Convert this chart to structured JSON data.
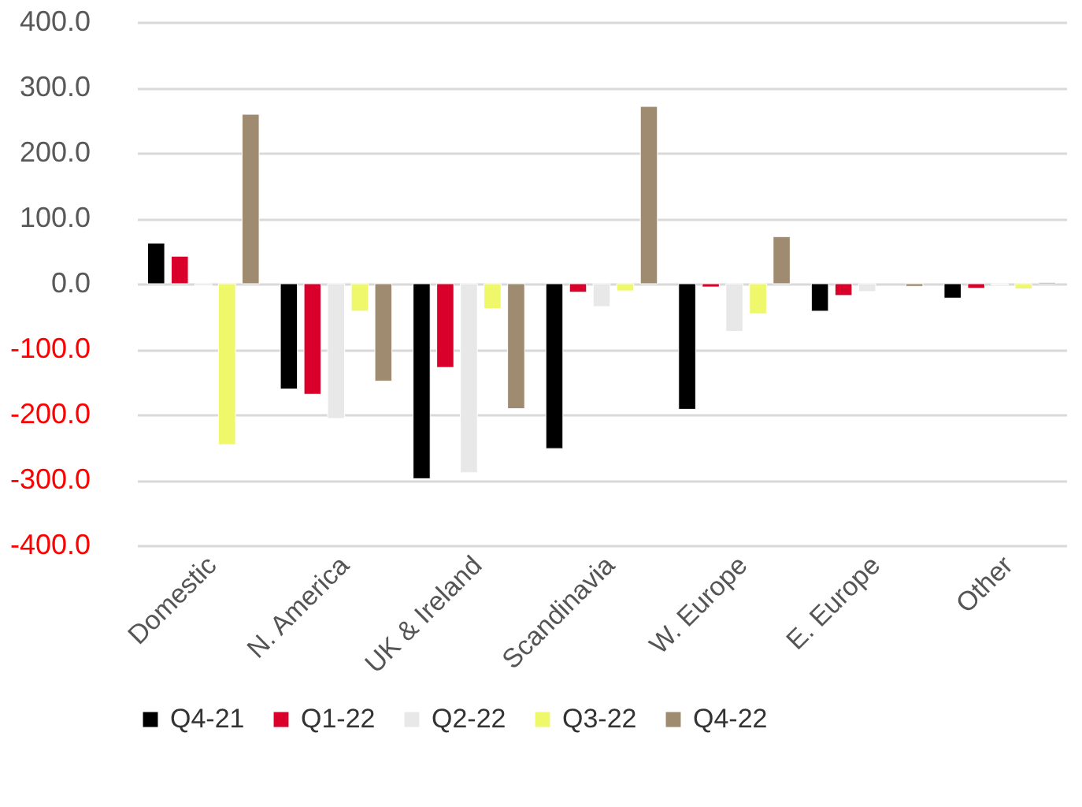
{
  "chart_data": {
    "type": "bar",
    "categories": [
      "Domestic",
      "N. America",
      "UK & Ireland",
      "Scandinavia",
      "W. Europe",
      "E. Europe",
      "Other"
    ],
    "series": [
      {
        "name": "Q4-21",
        "color": "#000000",
        "values": [
          62,
          -161,
          -298,
          -252,
          -192,
          -42,
          -22
        ]
      },
      {
        "name": "Q1-22",
        "color": "#d9002b",
        "values": [
          42,
          -169,
          -128,
          -13,
          -5,
          -18,
          -7
        ]
      },
      {
        "name": "Q2-22",
        "color": "#e8e8e8",
        "values": [
          -3,
          -206,
          -289,
          -35,
          -73,
          -12,
          -2
        ]
      },
      {
        "name": "Q3-22",
        "color": "#eef86a",
        "values": [
          -246,
          -42,
          -38,
          -11,
          -46,
          null,
          -8
        ]
      },
      {
        "name": "Q4-22",
        "color": "#9f8b6f",
        "values": [
          259,
          -149,
          -191,
          271,
          72,
          -4,
          2
        ]
      }
    ],
    "ylim": [
      -400,
      400
    ],
    "yticks": [
      {
        "value": -400,
        "label": "-400.0"
      },
      {
        "value": -300,
        "label": "-300.0"
      },
      {
        "value": -200,
        "label": "-200.0"
      },
      {
        "value": -100,
        "label": "-100.0"
      },
      {
        "value": 0,
        "label": "0.0"
      },
      {
        "value": 100,
        "label": "100.0"
      },
      {
        "value": 200,
        "label": "200.0"
      },
      {
        "value": 300,
        "label": "300.0"
      },
      {
        "value": 400,
        "label": "400.0"
      }
    ],
    "grid": "y",
    "legend": "bottom"
  }
}
